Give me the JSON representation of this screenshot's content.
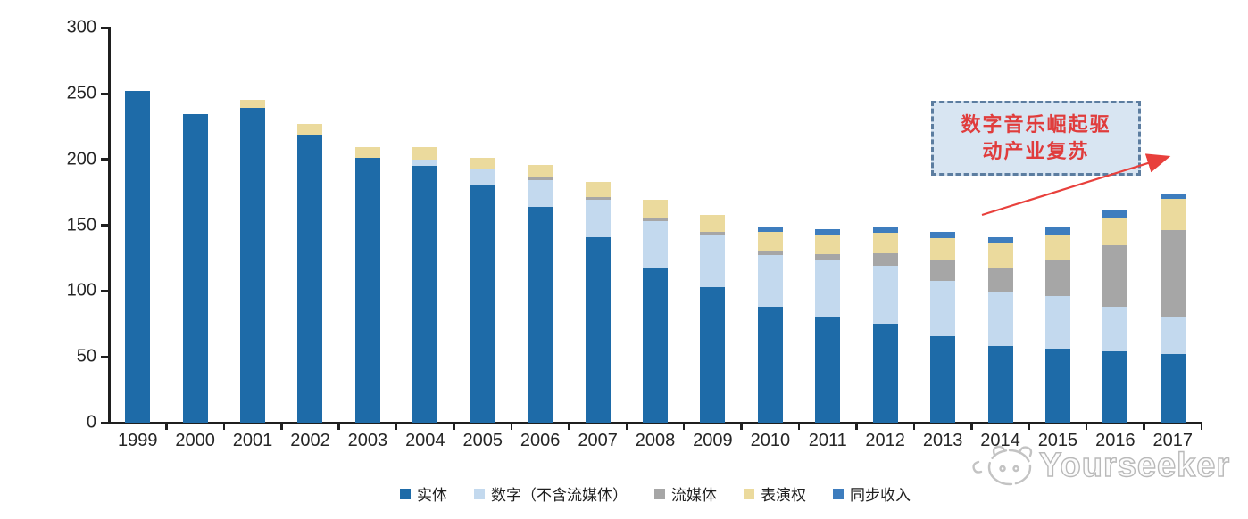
{
  "chart_data": {
    "type": "bar",
    "stacked": true,
    "title": "",
    "xlabel": "",
    "ylabel": "",
    "ylim": [
      0,
      300
    ],
    "yticks": [
      0,
      50,
      100,
      150,
      200,
      250,
      300
    ],
    "grid": false,
    "legend_position": "bottom",
    "categories": [
      "1999",
      "2000",
      "2001",
      "2002",
      "2003",
      "2004",
      "2005",
      "2006",
      "2007",
      "2008",
      "2009",
      "2010",
      "2011",
      "2012",
      "2013",
      "2014",
      "2015",
      "2016",
      "2017"
    ],
    "series": [
      {
        "name": "实体",
        "color": "#1e6ba8",
        "values": [
          252,
          234,
          239,
          219,
          201,
          195,
          181,
          164,
          141,
          118,
          103,
          88,
          80,
          75,
          66,
          58,
          56,
          54,
          52
        ]
      },
      {
        "name": "数字（不含流媒体）",
        "color": "#c3d9ee",
        "values": [
          0,
          0,
          0,
          0,
          0,
          5,
          11,
          20,
          28,
          35,
          40,
          39,
          44,
          44,
          42,
          41,
          40,
          34,
          28
        ]
      },
      {
        "name": "流媒体",
        "color": "#a6a6a6",
        "values": [
          0,
          0,
          0,
          0,
          0,
          0,
          0,
          2,
          2,
          2,
          2,
          4,
          4,
          10,
          16,
          19,
          27,
          47,
          66
        ]
      },
      {
        "name": "表演权",
        "color": "#ebda9d",
        "values": [
          0,
          0,
          6,
          8,
          8,
          9,
          9,
          10,
          12,
          14,
          13,
          14,
          15,
          15,
          16,
          18,
          20,
          21,
          24
        ]
      },
      {
        "name": "同步收入",
        "color": "#3e7dbe",
        "values": [
          0,
          0,
          0,
          0,
          0,
          0,
          0,
          0,
          0,
          0,
          0,
          4,
          4,
          5,
          5,
          5,
          5,
          5,
          4
        ]
      }
    ]
  },
  "annotation": {
    "line1": "数字音乐崛起驱",
    "line2": "动产业复苏",
    "text_color": "#e03c3c",
    "box_fill": "#d8e5f2",
    "box_border": "#5c7da0",
    "arrow_color": "#e8403c"
  },
  "watermark": {
    "text": "Yourseeker"
  }
}
